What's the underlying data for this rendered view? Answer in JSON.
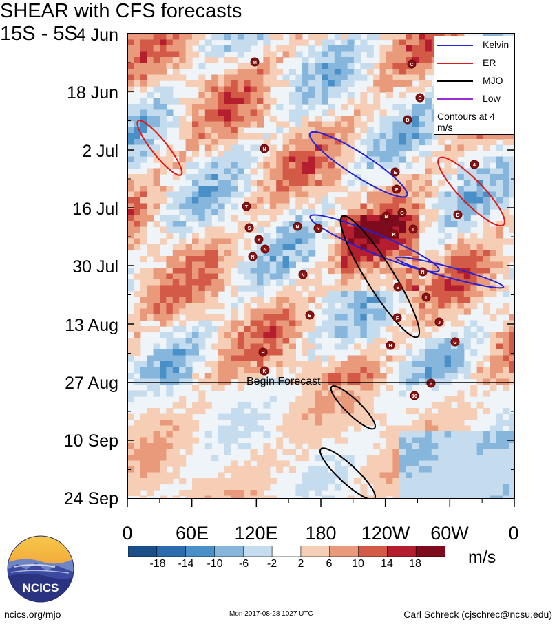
{
  "title": "SHEAR with CFS forecasts",
  "region": "15S - 5S",
  "legend": {
    "items": [
      {
        "label": "Kelvin",
        "color": "#2222dd"
      },
      {
        "label": "ER",
        "color": "#e01818"
      },
      {
        "label": "MJO",
        "color": "#000000"
      },
      {
        "label": "Low",
        "color": "#9b30d0"
      }
    ],
    "note": "Contours at 4 m/s"
  },
  "annotation": "Begin Forecast",
  "colorbar": {
    "ticks": [
      "-18",
      "-14",
      "-10",
      "-6",
      "-2",
      "2",
      "6",
      "10",
      "14",
      "18"
    ],
    "colors": [
      "#1a4f8a",
      "#2b6cb0",
      "#4a90c8",
      "#86b6dc",
      "#c4dced",
      "#ffffff",
      "#f6cdb5",
      "#e89a7a",
      "#d45a48",
      "#b51e2e",
      "#7d0a1d"
    ],
    "units": "m/s"
  },
  "logo_text": "NCICS",
  "footer": {
    "left": "ncics.org/mjo",
    "middle": "Mon 2017-08-28 1027 UTC",
    "right": "Carl Schreck (cjschrec@ncsu.edu)"
  },
  "chart_data": {
    "type": "heatmap",
    "title": "SHEAR with CFS forecasts",
    "subtitle": "15S - 5S",
    "xlabel": "",
    "ylabel": "",
    "x_ticks": [
      "0",
      "60E",
      "120E",
      "180",
      "120W",
      "60W",
      "0"
    ],
    "x_range": [
      0,
      360
    ],
    "y_ticks": [
      "4 Jun",
      "18 Jun",
      "2 Jul",
      "16 Jul",
      "30 Jul",
      "13 Aug",
      "27 Aug",
      "10 Sep",
      "24 Sep"
    ],
    "y_range": [
      "2017-06-04",
      "2017-09-24"
    ],
    "forecast_start": "2017-08-27",
    "contour_interval": 4,
    "units": "m/s",
    "legend_position": "top-right",
    "contours": [
      {
        "filter": "Kelvin",
        "lon": [
          250,
          350
        ],
        "date": [
          "2017-07-28",
          "2017-08-04"
        ]
      },
      {
        "filter": "Kelvin",
        "lon": [
          170,
          290
        ],
        "date": [
          "2017-07-18",
          "2017-07-31"
        ]
      },
      {
        "filter": "Kelvin",
        "lon": [
          170,
          260
        ],
        "date": [
          "2017-06-28",
          "2017-07-13"
        ]
      },
      {
        "filter": "MJO",
        "lon": [
          200,
          270
        ],
        "date": [
          "2017-07-18",
          "2017-08-16"
        ]
      },
      {
        "filter": "MJO",
        "lon": [
          190,
          230
        ],
        "date": [
          "2017-08-28",
          "2017-09-07"
        ]
      },
      {
        "filter": "MJO",
        "lon": [
          180,
          230
        ],
        "date": [
          "2017-09-12",
          "2017-09-24"
        ]
      },
      {
        "filter": "ER",
        "lon": [
          10,
          50
        ],
        "date": [
          "2017-06-25",
          "2017-07-08"
        ]
      },
      {
        "filter": "ER",
        "lon": [
          290,
          350
        ],
        "date": [
          "2017-07-04",
          "2017-07-20"
        ]
      }
    ],
    "storm_labels": [
      "M",
      "C",
      "C",
      "D",
      "N",
      "E",
      "F",
      "4",
      "D",
      "T",
      "B",
      "G",
      "S",
      "N",
      "N",
      "K",
      "I",
      "Y",
      "N",
      "N",
      "N",
      "N",
      "E",
      "B",
      "I",
      "F",
      "J",
      "G",
      "H",
      "H",
      "K",
      "P",
      "10"
    ]
  }
}
